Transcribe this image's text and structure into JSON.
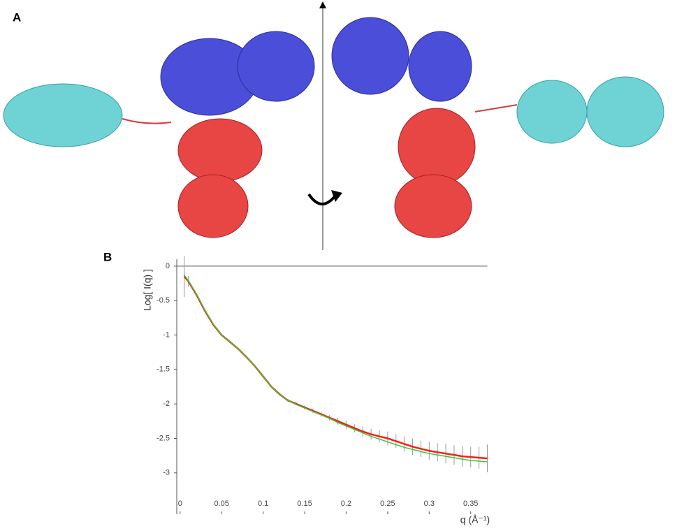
{
  "panel_labels": [
    "A",
    "B"
  ],
  "chart_data": {
    "type": "line",
    "x_label": "q (Å⁻¹)",
    "y_label": "Log[ I(q) ]",
    "x": [
      0.005,
      0.01,
      0.02,
      0.03,
      0.04,
      0.05,
      0.06,
      0.07,
      0.08,
      0.09,
      0.1,
      0.11,
      0.12,
      0.13,
      0.14,
      0.15,
      0.16,
      0.17,
      0.18,
      0.19,
      0.2,
      0.21,
      0.22,
      0.23,
      0.24,
      0.25,
      0.26,
      0.27,
      0.28,
      0.29,
      0.3,
      0.31,
      0.32,
      0.33,
      0.34,
      0.35,
      0.36,
      0.37
    ],
    "series": [
      {
        "color": "#ff1a1a",
        "values": [
          -0.15,
          -0.22,
          -0.42,
          -0.65,
          -0.85,
          -1.0,
          -1.1,
          -1.2,
          -1.32,
          -1.45,
          -1.6,
          -1.75,
          -1.86,
          -1.95,
          -2.0,
          -2.05,
          -2.1,
          -2.15,
          -2.2,
          -2.25,
          -2.3,
          -2.35,
          -2.4,
          -2.44,
          -2.47,
          -2.5,
          -2.54,
          -2.58,
          -2.62,
          -2.65,
          -2.68,
          -2.7,
          -2.72,
          -2.74,
          -2.76,
          -2.77,
          -2.78,
          -2.79
        ],
        "errors": [
          0.3,
          0.08,
          0.02,
          0.01,
          0.01,
          0.01,
          0.01,
          0.01,
          0.01,
          0.01,
          0.01,
          0.01,
          0.02,
          0.02,
          0.02,
          0.03,
          0.03,
          0.04,
          0.04,
          0.05,
          0.06,
          0.06,
          0.07,
          0.08,
          0.09,
          0.1,
          0.1,
          0.11,
          0.12,
          0.12,
          0.13,
          0.13,
          0.14,
          0.14,
          0.15,
          0.15,
          0.16,
          0.2
        ]
      },
      {
        "color": "#33cc33",
        "values": [
          -0.13,
          -0.21,
          -0.41,
          -0.64,
          -0.84,
          -1.0,
          -1.1,
          -1.2,
          -1.32,
          -1.45,
          -1.6,
          -1.75,
          -1.86,
          -1.95,
          -2.01,
          -2.06,
          -2.11,
          -2.16,
          -2.21,
          -2.27,
          -2.32,
          -2.37,
          -2.42,
          -2.47,
          -2.51,
          -2.55,
          -2.59,
          -2.63,
          -2.66,
          -2.69,
          -2.72,
          -2.74,
          -2.76,
          -2.78,
          -2.8,
          -2.82,
          -2.83,
          -2.84
        ]
      }
    ],
    "xlim": [
      -0.004,
      0.37
    ],
    "ylim": [
      -3.6,
      0.1
    ],
    "xticks": [
      0,
      0.05,
      0.1,
      0.15,
      0.2,
      0.25,
      0.3,
      0.35
    ],
    "yticks": [
      0,
      -0.5,
      -1,
      -1.5,
      -2,
      -2.5,
      -3
    ]
  }
}
